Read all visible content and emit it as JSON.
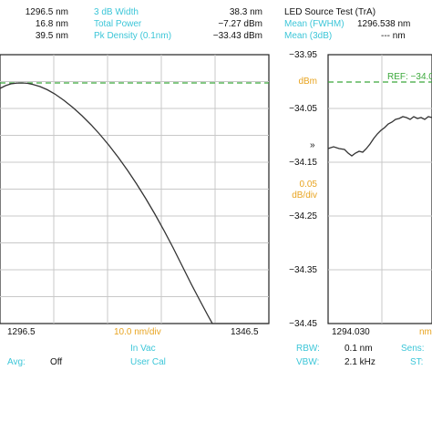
{
  "header_left": {
    "rows": [
      {
        "value": "1296.5 nm",
        "label": "3 dB Width",
        "result": "38.3 nm"
      },
      {
        "value": "16.8 nm",
        "label": "Total Power",
        "result": "−7.27 dBm"
      },
      {
        "value": "39.5 nm",
        "label": "Pk Density (0.1nm)",
        "result": "−33.43 dBm"
      }
    ]
  },
  "header_right": {
    "title": "LED Source Test (TrA)",
    "mean_fwhm_label": "Mean (FWHM)",
    "mean_fwhm_value": "1296.538 nm",
    "mean_3db_label": "Mean (3dB)",
    "mean_3db_value": "--- nm"
  },
  "left_plot": {
    "x_start": "1296.5",
    "x_end": "1346.5",
    "x_scale": "10.0 nm/div",
    "mode": "In Vac",
    "cal": "User Cal",
    "avg_label": "Avg:",
    "avg_value": "Off"
  },
  "right_plot": {
    "y_ticks": [
      "−33.95",
      "−34.05",
      "−34.15",
      "−34.25",
      "−34.35",
      "−34.45"
    ],
    "unit": "dBm",
    "scale_value": "0.05",
    "scale_unit": "dB/div",
    "ref_label": "REF: −34.0",
    "marker": "»",
    "x_start": "1294.030",
    "x_unit": "nm",
    "rbw_label": "RBW:",
    "rbw_value": "0.1 nm",
    "vbw_label": "VBW:",
    "vbw_value": "2.1 kHz",
    "sens_label": "Sens:",
    "st_label": "ST:"
  },
  "colors": {
    "cyan": "#3cc6d8",
    "orange": "#e8a420",
    "green": "#3aa83a",
    "grid": "#c8c8c8"
  }
}
